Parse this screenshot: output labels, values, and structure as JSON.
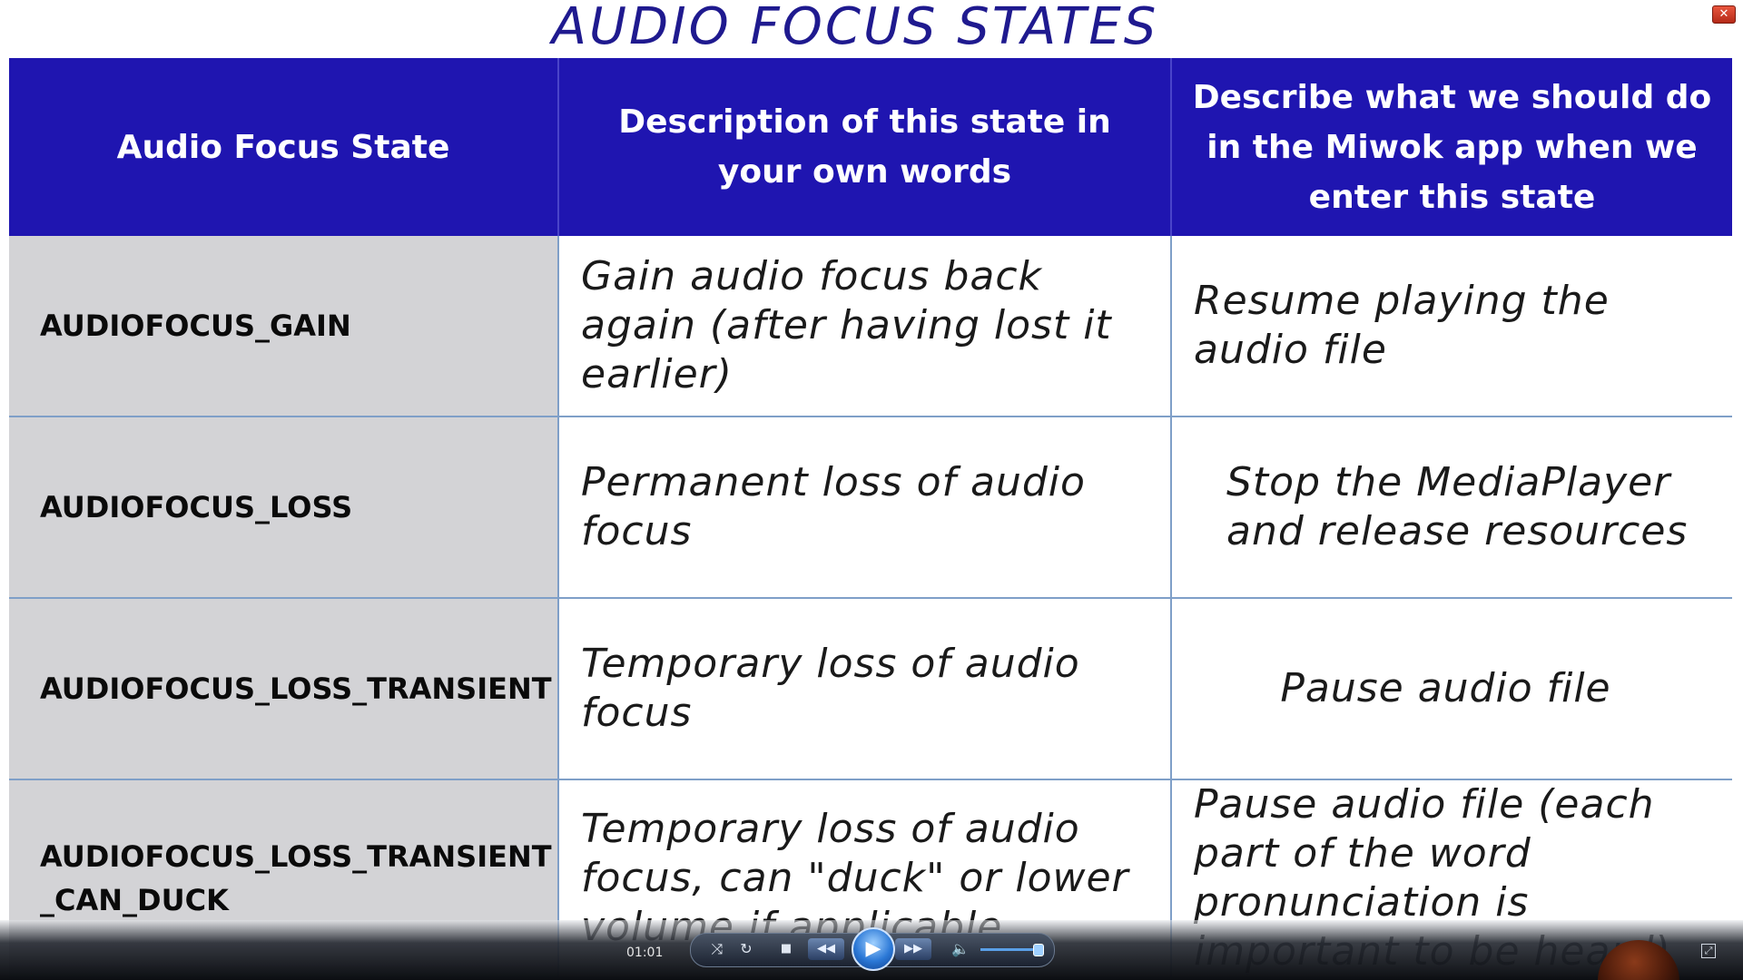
{
  "slide": {
    "title": "AUDIO FOCUS STATES"
  },
  "window": {
    "close_label": "✕"
  },
  "table": {
    "headers": [
      "Audio Focus State",
      "Description of this state in your own words",
      "Describe what we should do in the Miwok app when we enter this state"
    ],
    "rows": [
      {
        "state": "AUDIOFOCUS_GAIN",
        "description": "Gain audio focus back again (after having lost it earlier)",
        "action": "Resume playing the audio file"
      },
      {
        "state": "AUDIOFOCUS_LOSS",
        "description": "Permanent loss of audio focus",
        "action": "Stop the MediaPlayer and release resources"
      },
      {
        "state": "AUDIOFOCUS_LOSS_TRANSIENT",
        "description": "Temporary loss of audio focus",
        "action": "Pause audio file"
      },
      {
        "state": "AUDIOFOCUS_LOSS_TRANSIENT _CAN_DUCK",
        "description": "Temporary loss of audio focus, can \"duck\" or lower volume if applicable",
        "action": "Pause audio file (each part of the word pronunciation is important to be heard)"
      }
    ]
  },
  "player": {
    "timecode": "01:01",
    "volume_level_pct": 90,
    "icons": {
      "shuffle": "⤨",
      "repeat": "↻",
      "stop": "■",
      "rewind": "◀◀",
      "play": "▶",
      "forward": "▶▶",
      "volume": "🔈",
      "resize": "⤢"
    }
  }
}
